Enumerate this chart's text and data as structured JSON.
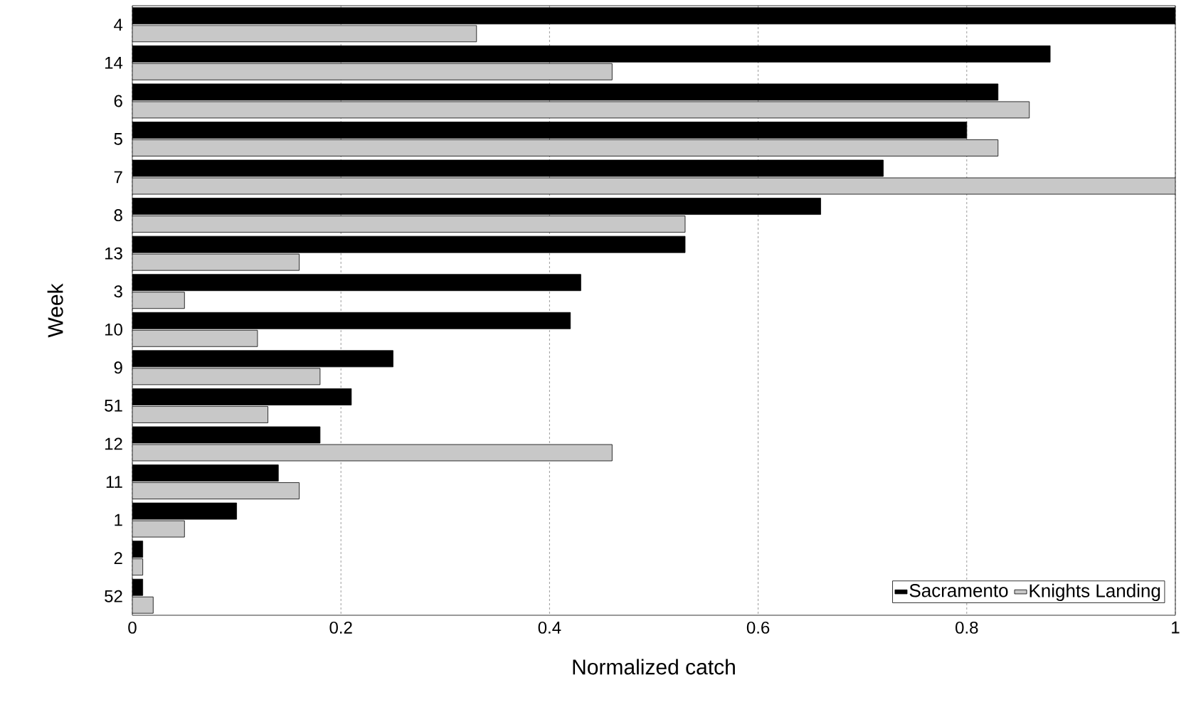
{
  "chart_data": {
    "type": "bar",
    "orientation": "horizontal",
    "xlabel": "Normalized catch",
    "ylabel": "Week",
    "categories": [
      "4",
      "14",
      "6",
      "5",
      "7",
      "8",
      "13",
      "3",
      "10",
      "9",
      "51",
      "12",
      "11",
      "1",
      "2",
      "52"
    ],
    "series": [
      {
        "name": "Sacramento",
        "color": "#000000",
        "values": [
          1.0,
          0.88,
          0.83,
          0.8,
          0.72,
          0.66,
          0.53,
          0.43,
          0.42,
          0.25,
          0.21,
          0.18,
          0.14,
          0.1,
          0.01,
          0.01
        ]
      },
      {
        "name": "Knights Landing",
        "color": "#c8c8c8",
        "values": [
          0.33,
          0.46,
          0.86,
          0.83,
          1.0,
          0.53,
          0.16,
          0.05,
          0.12,
          0.18,
          0.13,
          0.46,
          0.16,
          0.05,
          0.01,
          0.02
        ]
      }
    ],
    "xlim": [
      0,
      1
    ],
    "xticks": [
      0,
      0.2,
      0.4,
      0.6,
      0.8,
      1
    ],
    "grid": "x",
    "legend": "bottom right"
  }
}
